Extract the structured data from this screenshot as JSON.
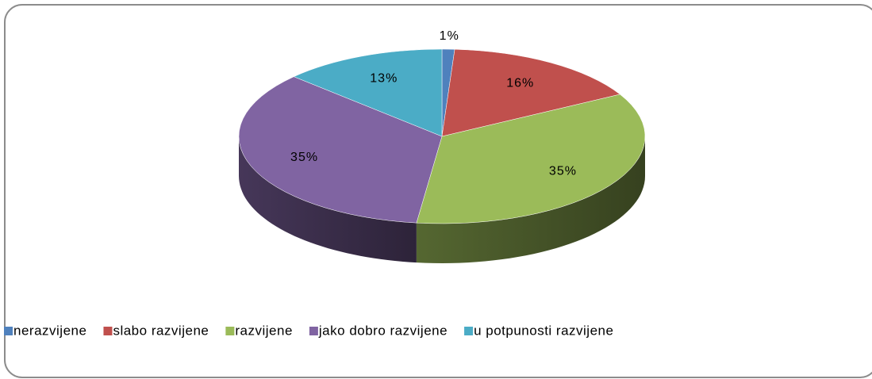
{
  "chart_data": {
    "type": "pie3d",
    "categories": [
      "nerazvijene",
      "slabo razvijene",
      "razvijene",
      "jako dobro razvijene",
      "u potpunosti razvijene"
    ],
    "values": [
      1,
      16,
      35,
      35,
      13
    ],
    "value_labels": [
      "1%",
      "16%",
      "35%",
      "35%",
      "13%"
    ],
    "colors": [
      "#4f81bd",
      "#c0504d",
      "#9bbb59",
      "#8064a2",
      "#4bacc6"
    ],
    "legend": "bottom"
  }
}
